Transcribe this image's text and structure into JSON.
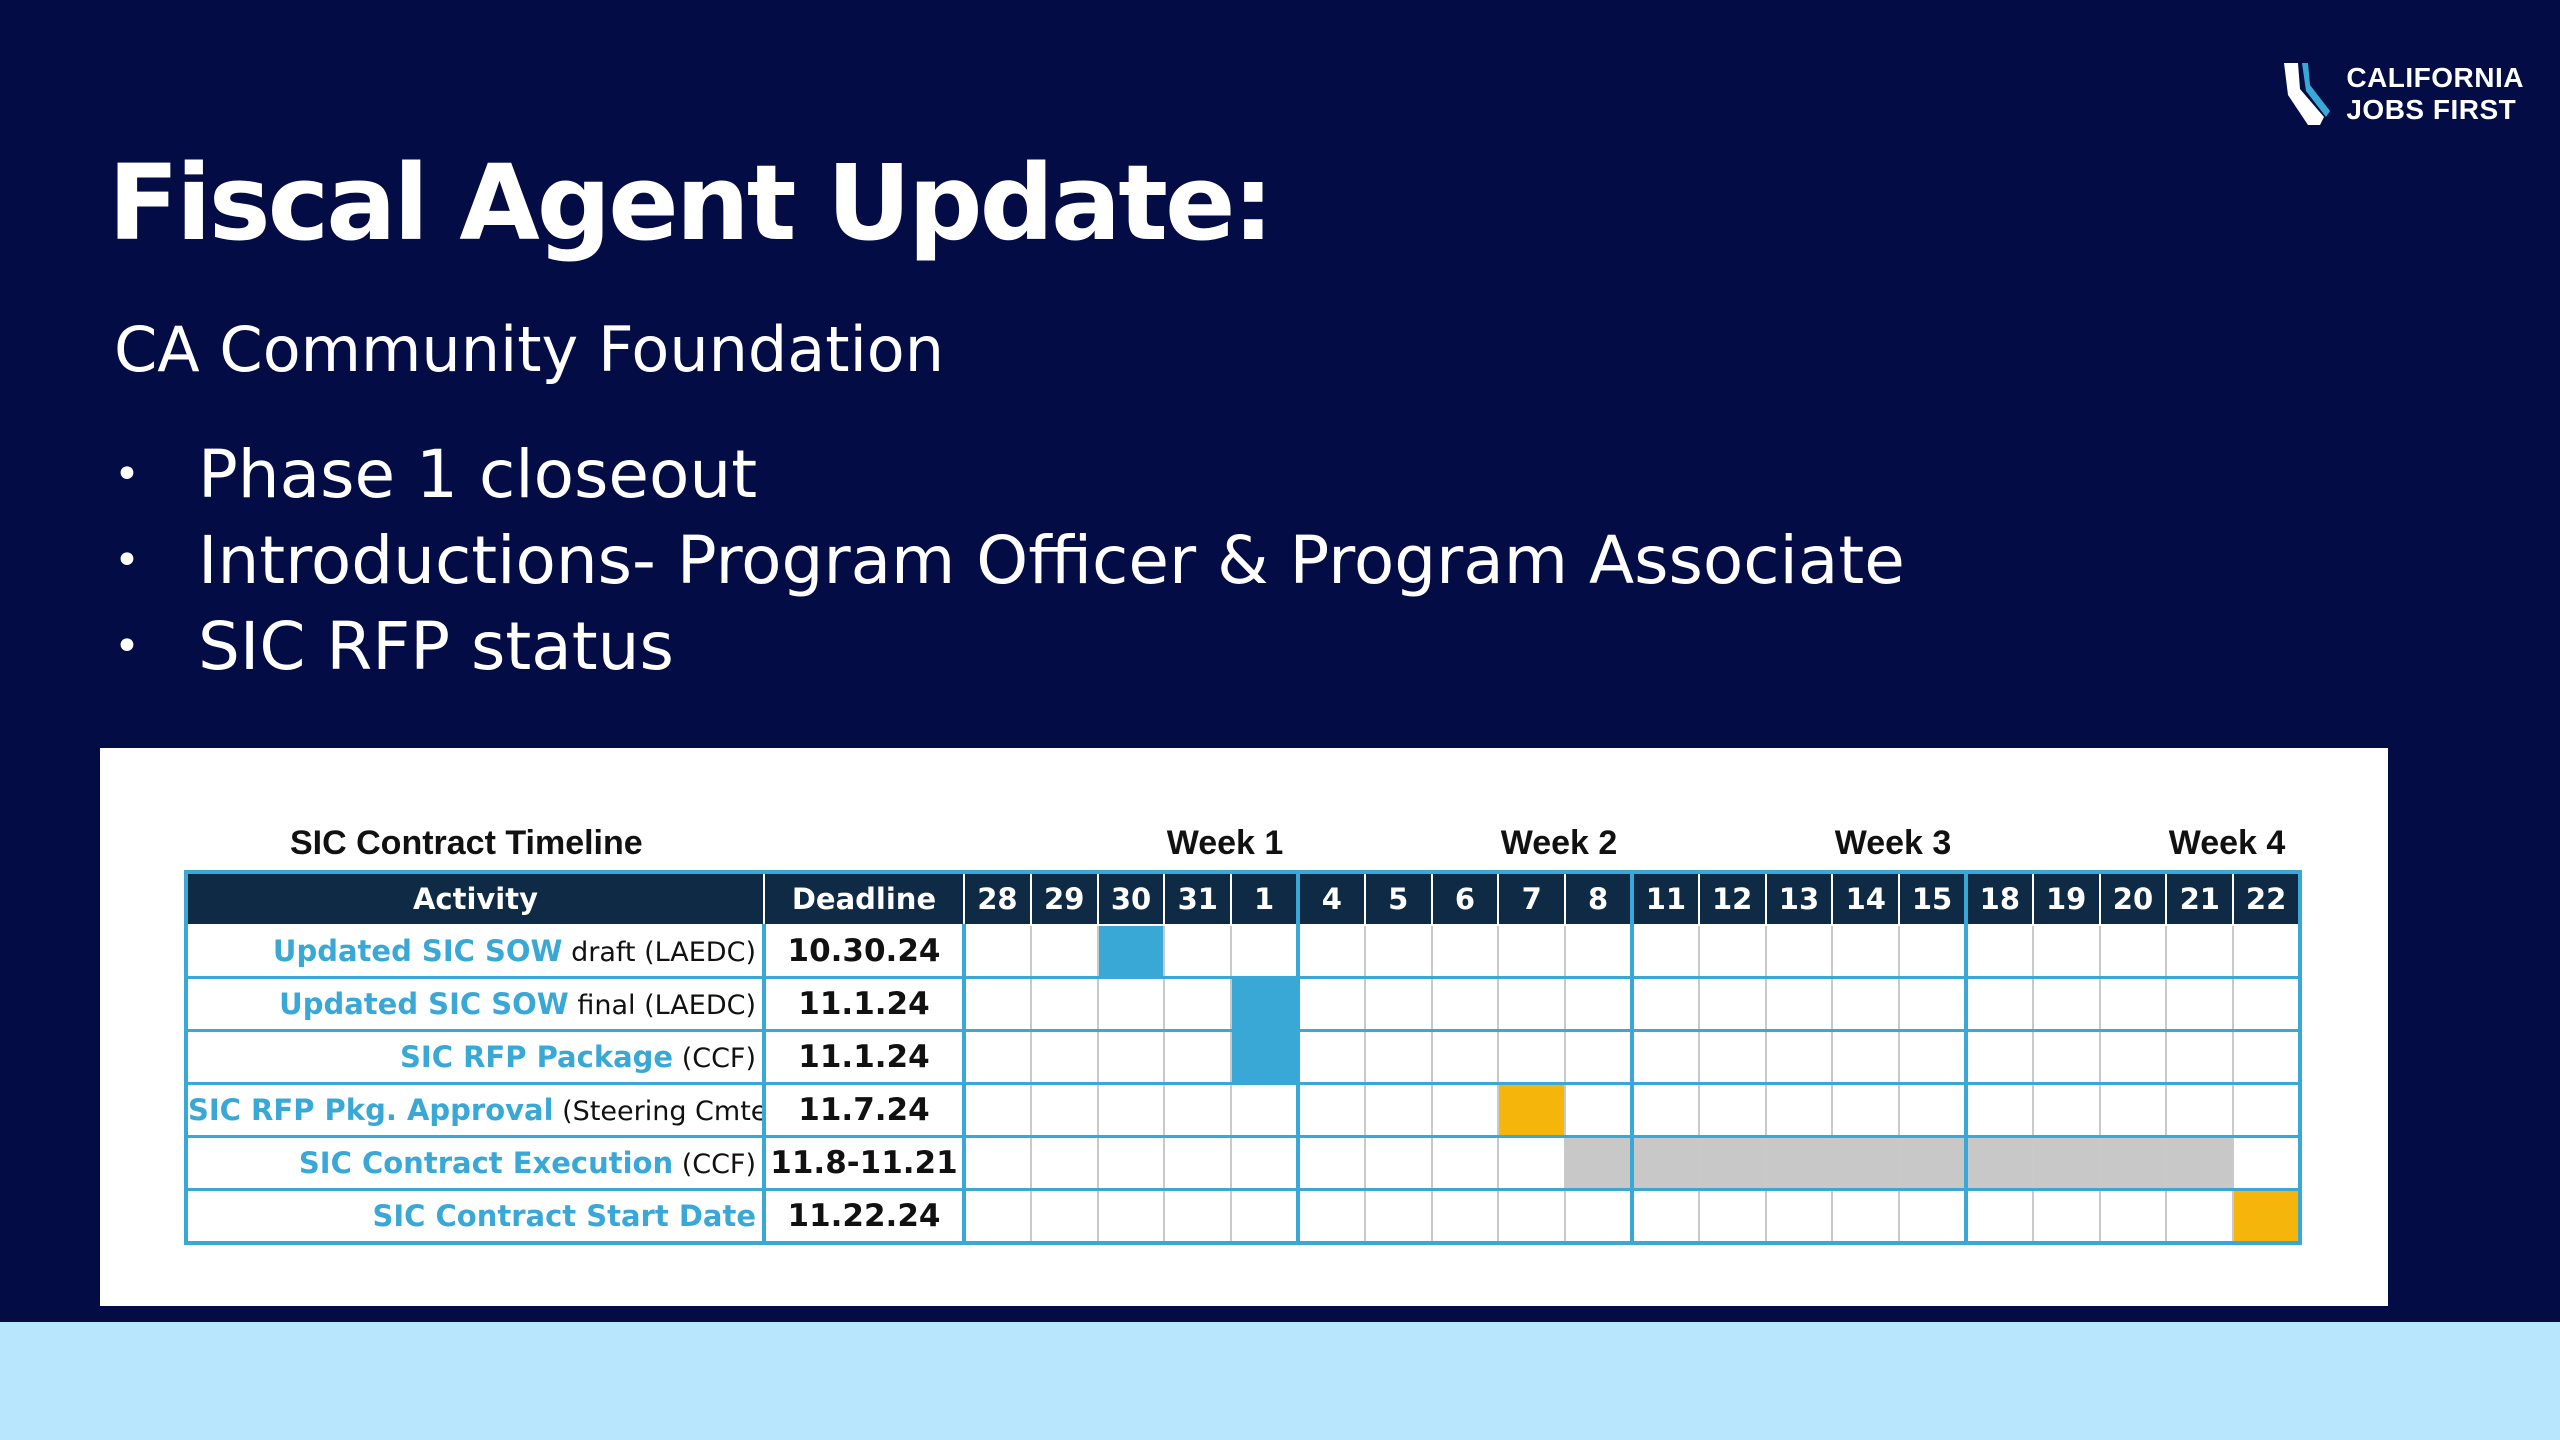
{
  "logo": {
    "line1": "CALIFORNIA",
    "line2": "JOBS FIRST"
  },
  "title": "Fiscal Agent Update:",
  "subtitle": "CA Community Foundation",
  "bullets": [
    "Phase 1 closeout",
    "Introductions- Program Officer & Program Associate",
    "SIC RFP status"
  ],
  "colors": {
    "background": "#030c44",
    "accent_blue": "#3aa8d6",
    "gold": "#f5b50a",
    "gray": "#c8c8c8",
    "header_dark": "#0f2a44",
    "bottom_band": "#b8e6fc"
  },
  "timeline": {
    "title": "SIC Contract Timeline",
    "weeks": [
      "Week 1",
      "Week 2",
      "Week 3",
      "Week 4"
    ],
    "header": {
      "activity": "Activity",
      "deadline": "Deadline"
    },
    "days": [
      "28",
      "29",
      "30",
      "31",
      "1",
      "4",
      "5",
      "6",
      "7",
      "8",
      "11",
      "12",
      "13",
      "14",
      "15",
      "18",
      "19",
      "20",
      "21",
      "22"
    ],
    "rows": [
      {
        "activity": "Updated SIC SOW",
        "owner": " draft (LAEDC)",
        "deadline": "10.30.24",
        "bars": [
          {
            "start": "30",
            "end": "30",
            "color": "blue"
          }
        ]
      },
      {
        "activity": "Updated SIC SOW",
        "owner": " final (LAEDC)",
        "deadline": "11.1.24",
        "bars": [
          {
            "start": "1",
            "end": "1",
            "color": "blue"
          }
        ]
      },
      {
        "activity": "SIC RFP Package",
        "owner": " (CCF)",
        "deadline": "11.1.24",
        "bars": [
          {
            "start": "1",
            "end": "1",
            "color": "blue"
          }
        ]
      },
      {
        "activity": "SIC RFP Pkg. Approval",
        "owner": " (Steering Cmte)",
        "deadline": "11.7.24",
        "bars": [
          {
            "start": "7",
            "end": "7",
            "color": "gold"
          }
        ]
      },
      {
        "activity": "SIC Contract Execution",
        "owner": " (CCF)",
        "deadline": "11.8-11.21",
        "bars": [
          {
            "start": "8",
            "end": "21",
            "color": "gray"
          }
        ]
      },
      {
        "activity": "SIC Contract Start Date",
        "owner": "",
        "deadline": "11.22.24",
        "bars": [
          {
            "start": "22",
            "end": "22",
            "color": "gold"
          }
        ]
      }
    ]
  }
}
